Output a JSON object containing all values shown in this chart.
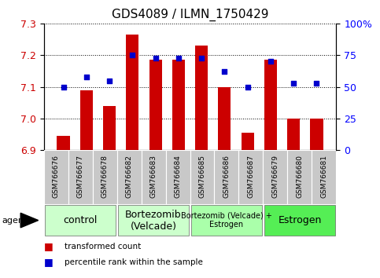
{
  "title": "GDS4089 / ILMN_1750429",
  "categories": [
    "GSM766676",
    "GSM766677",
    "GSM766678",
    "GSM766682",
    "GSM766683",
    "GSM766684",
    "GSM766685",
    "GSM766686",
    "GSM766687",
    "GSM766679",
    "GSM766680",
    "GSM766681"
  ],
  "bar_values": [
    6.945,
    7.09,
    7.04,
    7.265,
    7.185,
    7.185,
    7.23,
    7.1,
    6.955,
    7.185,
    7.0,
    7.0
  ],
  "bar_baseline": 6.9,
  "blue_values": [
    50,
    58,
    55,
    75,
    73,
    73,
    73,
    62,
    50,
    70,
    53,
    53
  ],
  "ylim_left": [
    6.9,
    7.3
  ],
  "ylim_right": [
    0,
    100
  ],
  "yticks_left": [
    6.9,
    7.0,
    7.1,
    7.2,
    7.3
  ],
  "yticks_right": [
    0,
    25,
    50,
    75,
    100
  ],
  "ytick_labels_right": [
    "0",
    "25",
    "50",
    "75",
    "100%"
  ],
  "bar_color": "#cc0000",
  "blue_color": "#0000cc",
  "group_spans": [
    {
      "start": 0,
      "end": 2,
      "label": "control",
      "color": "#ccffcc",
      "fontsize": 9
    },
    {
      "start": 3,
      "end": 5,
      "label": "Bortezomib\n(Velcade)",
      "color": "#ccffcc",
      "fontsize": 9
    },
    {
      "start": 6,
      "end": 8,
      "label": "Bortezomib (Velcade) +\nEstrogen",
      "color": "#aaffaa",
      "fontsize": 7
    },
    {
      "start": 9,
      "end": 11,
      "label": "Estrogen",
      "color": "#55ee55",
      "fontsize": 9
    }
  ],
  "legend_items": [
    {
      "label": "transformed count",
      "color": "#cc0000"
    },
    {
      "label": "percentile rank within the sample",
      "color": "#0000cc"
    }
  ],
  "agent_label": "agent",
  "title_fontsize": 11,
  "axis_fontsize": 9,
  "tick_label_fontsize": 7,
  "gray_box_color": "#c8c8c8"
}
